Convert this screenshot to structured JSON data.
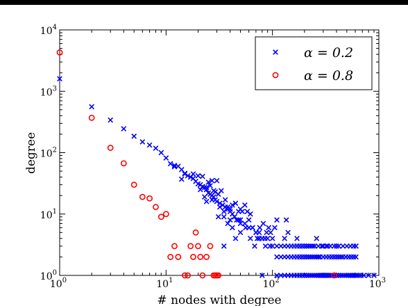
{
  "chart_data": {
    "type": "scatter",
    "title": "",
    "xlabel": "# nodes with degree",
    "ylabel": "degree",
    "xscale": "log",
    "yscale": "log",
    "xlim": [
      1,
      1000
    ],
    "ylim": [
      1,
      10000
    ],
    "x_ticks": [
      {
        "base": "10",
        "exp": "0",
        "value": 1
      },
      {
        "base": "10",
        "exp": "1",
        "value": 10
      },
      {
        "base": "10",
        "exp": "2",
        "value": 100
      },
      {
        "base": "10",
        "exp": "3",
        "value": 1000
      }
    ],
    "y_ticks": [
      {
        "base": "10",
        "exp": "0",
        "value": 1
      },
      {
        "base": "10",
        "exp": "1",
        "value": 10
      },
      {
        "base": "10",
        "exp": "2",
        "value": 100
      },
      {
        "base": "10",
        "exp": "3",
        "value": 1000
      },
      {
        "base": "10",
        "exp": "4",
        "value": 10000
      }
    ],
    "grid": false,
    "legend": "top-right",
    "series": [
      {
        "name": "α = 0.2",
        "marker": "x",
        "color": "#0000ff",
        "points": [
          [
            1,
            1600
          ],
          [
            2,
            560
          ],
          [
            3,
            340
          ],
          [
            4,
            245
          ],
          [
            5,
            185
          ],
          [
            6,
            150
          ],
          [
            7,
            133
          ],
          [
            8,
            118
          ],
          [
            9,
            100
          ],
          [
            10,
            82
          ],
          [
            11,
            66
          ],
          [
            12,
            62
          ],
          [
            13,
            60
          ],
          [
            14,
            53
          ],
          [
            15,
            46
          ],
          [
            16,
            42
          ],
          [
            17,
            40
          ],
          [
            18,
            38
          ],
          [
            19,
            34
          ],
          [
            20,
            31
          ],
          [
            21,
            30
          ],
          [
            22,
            28
          ],
          [
            23,
            27
          ],
          [
            24,
            25
          ],
          [
            25,
            22
          ],
          [
            26,
            21
          ],
          [
            27,
            20
          ],
          [
            28,
            19
          ],
          [
            29,
            17
          ],
          [
            30,
            16
          ],
          [
            32,
            15
          ],
          [
            34,
            14
          ],
          [
            36,
            13
          ],
          [
            38,
            12
          ],
          [
            40,
            11
          ],
          [
            42,
            10
          ],
          [
            44,
            9
          ],
          [
            46,
            8
          ],
          [
            48,
            8
          ],
          [
            50,
            7
          ],
          [
            55,
            7
          ],
          [
            60,
            6
          ],
          [
            65,
            6
          ],
          [
            70,
            5
          ],
          [
            75,
            5
          ],
          [
            80,
            4
          ],
          [
            85,
            4
          ],
          [
            90,
            4
          ],
          [
            95,
            3
          ],
          [
            12,
            59
          ],
          [
            15,
            45
          ],
          [
            18,
            45
          ],
          [
            20,
            42
          ],
          [
            22,
            41
          ],
          [
            25,
            33
          ],
          [
            27,
            35
          ],
          [
            30,
            35
          ],
          [
            17,
            40
          ],
          [
            14,
            37
          ],
          [
            21,
            25
          ],
          [
            24,
            27
          ],
          [
            26,
            29
          ],
          [
            28,
            24
          ],
          [
            29,
            23
          ],
          [
            31,
            21
          ],
          [
            33,
            24
          ],
          [
            23,
            19
          ],
          [
            24,
            16
          ],
          [
            27,
            17
          ],
          [
            32,
            13
          ],
          [
            35,
            11
          ],
          [
            38,
            13
          ],
          [
            36,
            17
          ],
          [
            40,
            12
          ],
          [
            42,
            14
          ],
          [
            45,
            15
          ],
          [
            50,
            12
          ],
          [
            55,
            14
          ],
          [
            48,
            11
          ],
          [
            52,
            11
          ],
          [
            58,
            11
          ],
          [
            62,
            10
          ],
          [
            31,
            9
          ],
          [
            35,
            9
          ],
          [
            40,
            8
          ],
          [
            44,
            9
          ],
          [
            50,
            8
          ],
          [
            56,
            6
          ],
          [
            60,
            8
          ],
          [
            65,
            6
          ],
          [
            70,
            5
          ],
          [
            72,
            4
          ],
          [
            76,
            6
          ],
          [
            82,
            7
          ],
          [
            88,
            5
          ],
          [
            92,
            6
          ],
          [
            96,
            5
          ],
          [
            100,
            4
          ],
          [
            105,
            6
          ],
          [
            42,
            6
          ],
          [
            50,
            5
          ],
          [
            38,
            7
          ],
          [
            45,
            4
          ],
          [
            35,
            3
          ],
          [
            62,
            4
          ],
          [
            68,
            3
          ],
          [
            75,
            4
          ],
          [
            86,
            3
          ],
          [
            130,
            4
          ],
          [
            140,
            5
          ],
          [
            170,
            4
          ],
          [
            200,
            3
          ],
          [
            260,
            4
          ],
          [
            320,
            3
          ],
          [
            400,
            3
          ],
          [
            500,
            3
          ],
          [
            610,
            3
          ],
          [
            135,
            8
          ],
          [
            110,
            8
          ],
          [
            100,
            3
          ],
          [
            110,
            3
          ],
          [
            120,
            3
          ],
          [
            130,
            3
          ],
          [
            140,
            3
          ],
          [
            150,
            3
          ],
          [
            160,
            3
          ],
          [
            170,
            3
          ],
          [
            180,
            3
          ],
          [
            190,
            3
          ],
          [
            210,
            3
          ],
          [
            220,
            3
          ],
          [
            230,
            3
          ],
          [
            240,
            3
          ],
          [
            250,
            3
          ],
          [
            270,
            3
          ],
          [
            290,
            3
          ],
          [
            300,
            3
          ],
          [
            330,
            3
          ],
          [
            350,
            3
          ],
          [
            380,
            3
          ],
          [
            420,
            3
          ],
          [
            460,
            3
          ],
          [
            540,
            3
          ],
          [
            580,
            3
          ],
          [
            110,
            2
          ],
          [
            120,
            2
          ],
          [
            130,
            2
          ],
          [
            140,
            2
          ],
          [
            150,
            2
          ],
          [
            160,
            2
          ],
          [
            170,
            2
          ],
          [
            180,
            2
          ],
          [
            190,
            2
          ],
          [
            200,
            2
          ],
          [
            210,
            2
          ],
          [
            220,
            2
          ],
          [
            230,
            2
          ],
          [
            240,
            2
          ],
          [
            250,
            2
          ],
          [
            260,
            2
          ],
          [
            270,
            2
          ],
          [
            280,
            2
          ],
          [
            300,
            2
          ],
          [
            320,
            2
          ],
          [
            340,
            2
          ],
          [
            360,
            2
          ],
          [
            380,
            2
          ],
          [
            400,
            2
          ],
          [
            420,
            2
          ],
          [
            440,
            2
          ],
          [
            460,
            2
          ],
          [
            490,
            2
          ],
          [
            520,
            2
          ],
          [
            550,
            2
          ],
          [
            580,
            2
          ],
          [
            610,
            2
          ],
          [
            80,
            1
          ],
          [
            110,
            1
          ],
          [
            120,
            1
          ],
          [
            130,
            1
          ],
          [
            140,
            1
          ],
          [
            150,
            1
          ],
          [
            160,
            1
          ],
          [
            170,
            1
          ],
          [
            180,
            1
          ],
          [
            190,
            1
          ],
          [
            200,
            1
          ],
          [
            210,
            1
          ],
          [
            220,
            1
          ],
          [
            230,
            1
          ],
          [
            240,
            1
          ],
          [
            250,
            1
          ],
          [
            260,
            1
          ],
          [
            270,
            1
          ],
          [
            280,
            1
          ],
          [
            290,
            1
          ],
          [
            300,
            1
          ],
          [
            310,
            1
          ],
          [
            320,
            1
          ],
          [
            330,
            1
          ],
          [
            340,
            1
          ],
          [
            350,
            1
          ],
          [
            360,
            1
          ],
          [
            380,
            1
          ],
          [
            400,
            1
          ],
          [
            420,
            1
          ],
          [
            440,
            1
          ],
          [
            460,
            1
          ],
          [
            480,
            1
          ],
          [
            500,
            1
          ],
          [
            520,
            1
          ],
          [
            540,
            1
          ],
          [
            560,
            1
          ],
          [
            580,
            1
          ],
          [
            600,
            1
          ],
          [
            620,
            1
          ],
          [
            650,
            1
          ],
          [
            680,
            1
          ],
          [
            720,
            1
          ],
          [
            800,
            1
          ],
          [
            900,
            1
          ]
        ]
      },
      {
        "name": "α = 0.8",
        "marker": "o",
        "color": "#ff0000",
        "points": [
          [
            1,
            4300
          ],
          [
            2,
            370
          ],
          [
            3,
            120
          ],
          [
            4,
            67
          ],
          [
            5,
            30
          ],
          [
            6,
            19
          ],
          [
            7,
            18
          ],
          [
            8,
            13
          ],
          [
            9,
            9
          ],
          [
            10,
            10
          ],
          [
            11,
            2
          ],
          [
            12,
            3
          ],
          [
            13,
            2
          ],
          [
            15,
            1
          ],
          [
            16,
            1
          ],
          [
            17,
            3
          ],
          [
            18,
            2
          ],
          [
            19,
            5
          ],
          [
            20,
            3
          ],
          [
            21,
            2
          ],
          [
            22,
            1
          ],
          [
            24,
            2
          ],
          [
            26,
            3
          ],
          [
            28,
            1
          ],
          [
            29,
            1
          ],
          [
            30,
            1
          ],
          [
            31,
            1
          ],
          [
            380,
            1
          ]
        ]
      }
    ]
  }
}
